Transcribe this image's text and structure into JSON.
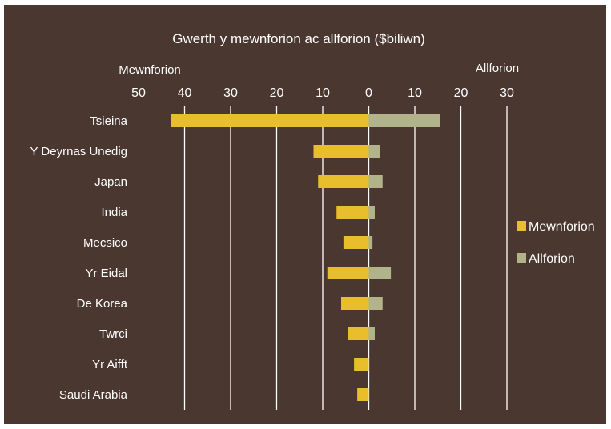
{
  "chart_data": {
    "type": "bar",
    "orientation": "horizontal-diverging",
    "title": "Gwerth y mewnforion ac allforion ($biliwn)",
    "left_axis_label": "Mewnforion",
    "right_axis_label": "Allforion",
    "ticks": [
      "50",
      "40",
      "30",
      "20",
      "10",
      "0",
      "10",
      "20",
      "30"
    ],
    "xlim": [
      -50,
      30
    ],
    "tick_values": [
      -50,
      -40,
      -30,
      -20,
      -10,
      0,
      10,
      20,
      30
    ],
    "grid": true,
    "legend_position": "right",
    "categories": [
      "Tsieina",
      "Y Deyrnas Unedig",
      "Japan",
      "India",
      "Mecsico",
      "Yr Eidal",
      "De Korea",
      "Twrci",
      "Yr Aifft",
      "Saudi Arabia"
    ],
    "series": [
      {
        "name": "Mewnforion",
        "color": "#e8be2c",
        "values": [
          43,
          12,
          11,
          7,
          5.5,
          9,
          6,
          4.5,
          3.2,
          2.5
        ]
      },
      {
        "name": "Allforion",
        "color": "#b1b48a",
        "values": [
          15.5,
          2.5,
          3,
          1.3,
          0.8,
          4.8,
          3,
          1.3,
          0,
          0
        ]
      }
    ]
  },
  "colors": {
    "background": "#4a3730",
    "gridline": "#ffffff",
    "text": "#ffffff"
  }
}
